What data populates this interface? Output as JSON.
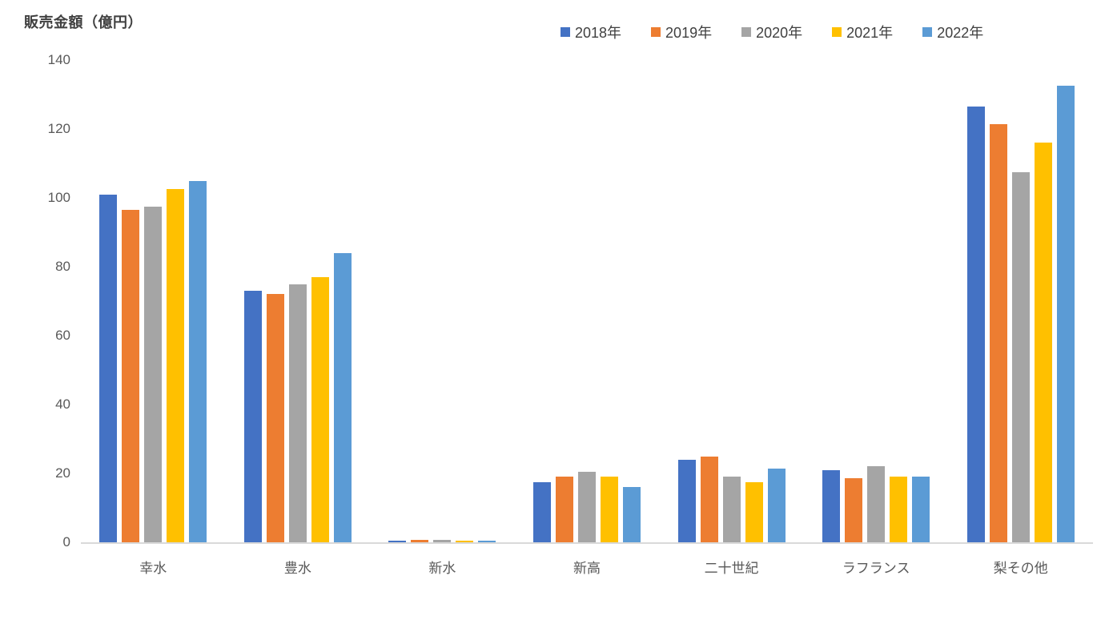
{
  "title": "販売金額（億円）",
  "chart_data": {
    "type": "bar",
    "title": "販売金額（億円）",
    "ylabel": "販売金額（億円）",
    "xlabel": "",
    "ylim": [
      0,
      140
    ],
    "ytick_step": 20,
    "grid": false,
    "legend_position": "top",
    "categories": [
      "幸水",
      "豊水",
      "新水",
      "新高",
      "二十世紀",
      "ラフランス",
      "梨その他"
    ],
    "series": [
      {
        "name": "2018年",
        "color": "#4472C4",
        "values": [
          101,
          73,
          0.5,
          17.5,
          24,
          21,
          126.5
        ]
      },
      {
        "name": "2019年",
        "color": "#ED7D31",
        "values": [
          96.5,
          72,
          0.7,
          19,
          25,
          18.5,
          121.5
        ]
      },
      {
        "name": "2020年",
        "color": "#A5A5A5",
        "values": [
          97.5,
          75,
          0.6,
          20.5,
          19,
          22,
          107.5
        ]
      },
      {
        "name": "2021年",
        "color": "#FFC000",
        "values": [
          102.5,
          77,
          0.4,
          19,
          17.5,
          19,
          116
        ]
      },
      {
        "name": "2022年",
        "color": "#5B9BD5",
        "values": [
          105,
          84,
          0.4,
          16,
          21.5,
          19,
          132.5
        ]
      }
    ],
    "axis_line_color": "#D9D9D9",
    "tick_label_color": "#595959",
    "title_color": "#404040"
  }
}
